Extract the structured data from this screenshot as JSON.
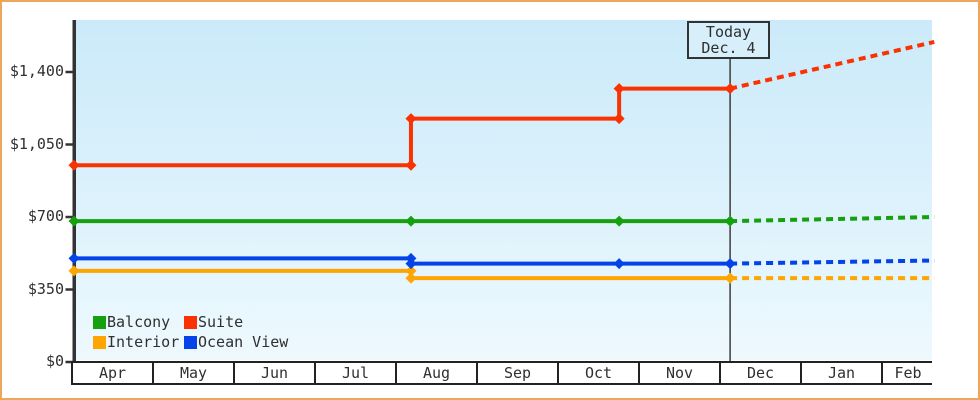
{
  "chart_data": {
    "type": "line",
    "description": "Cabin price history by category with dashed future projection",
    "y_axis": {
      "ticks": [
        {
          "label": "$0",
          "value": 0
        },
        {
          "label": "$350",
          "value": 350
        },
        {
          "label": "$700",
          "value": 700
        },
        {
          "label": "$1,050",
          "value": 1050
        },
        {
          "label": "$1,400",
          "value": 1400
        }
      ],
      "y_range": [
        0,
        1640
      ]
    },
    "x_axis": {
      "months": [
        "Apr",
        "May",
        "Jun",
        "Jul",
        "Aug",
        "Sep",
        "Oct",
        "Nov",
        "Dec",
        "Jan",
        "Feb"
      ]
    },
    "today": {
      "line1": "Today",
      "line2": "Dec. 4",
      "m": 8.1
    },
    "series": [
      {
        "name": "Interior",
        "color": "#fea502",
        "points": [
          {
            "m": 0,
            "date": "Apr 1",
            "value": 440
          },
          {
            "m": 4.16,
            "date": "Aug 5",
            "value": 440
          },
          {
            "m": 4.16,
            "date": "Aug 5",
            "value": 405
          },
          {
            "m": 8.1,
            "date": "Dec 4",
            "value": 405
          }
        ],
        "projection": {
          "m": 10.62,
          "date": "late Feb",
          "value": 405
        }
      },
      {
        "name": "Ocean View",
        "color": "#0443e8",
        "points": [
          {
            "m": 0,
            "date": "Apr 1",
            "value": 500
          },
          {
            "m": 4.16,
            "date": "Aug 5",
            "value": 500
          },
          {
            "m": 4.16,
            "date": "Aug 5",
            "value": 475
          },
          {
            "m": 6.73,
            "date": "Oct 22",
            "value": 475
          },
          {
            "m": 8.1,
            "date": "Dec 4",
            "value": 475
          }
        ],
        "projection": {
          "m": 10.62,
          "date": "late Feb",
          "value": 490
        }
      },
      {
        "name": "Balcony",
        "color": "#16a00e",
        "points": [
          {
            "m": 0,
            "date": "Apr 1",
            "value": 680
          },
          {
            "m": 4.16,
            "date": "Aug 5",
            "value": 680
          },
          {
            "m": 6.73,
            "date": "Oct 22",
            "value": 680
          },
          {
            "m": 8.1,
            "date": "Dec 4",
            "value": 680
          }
        ],
        "projection": {
          "m": 10.62,
          "date": "late Feb",
          "value": 700
        }
      },
      {
        "name": "Suite",
        "color": "#fa3202",
        "points": [
          {
            "m": 0,
            "date": "Apr 1",
            "value": 950
          },
          {
            "m": 4.16,
            "date": "Aug 5",
            "value": 950
          },
          {
            "m": 4.16,
            "date": "Aug 5",
            "value": 1175
          },
          {
            "m": 6.73,
            "date": "Oct 22",
            "value": 1175
          },
          {
            "m": 6.73,
            "date": "Oct 22",
            "value": 1320
          },
          {
            "m": 8.1,
            "date": "Dec 4",
            "value": 1320
          }
        ],
        "projection": {
          "m": 10.62,
          "date": "late Feb",
          "value": 1545
        }
      }
    ],
    "legend": {
      "items": [
        "Balcony",
        "Suite",
        "Interior",
        "Ocean View"
      ]
    },
    "colors": {
      "axis": "#333333",
      "today_line": "#3c3c3c",
      "x_axis_border": "#222222",
      "plot_bg_top": "#cbeaf9",
      "plot_bg_bottom": "#eef9fe",
      "frame_border": "#eda65c",
      "text": "#2f2f2f",
      "today_box_bg": "#d7effb"
    }
  }
}
